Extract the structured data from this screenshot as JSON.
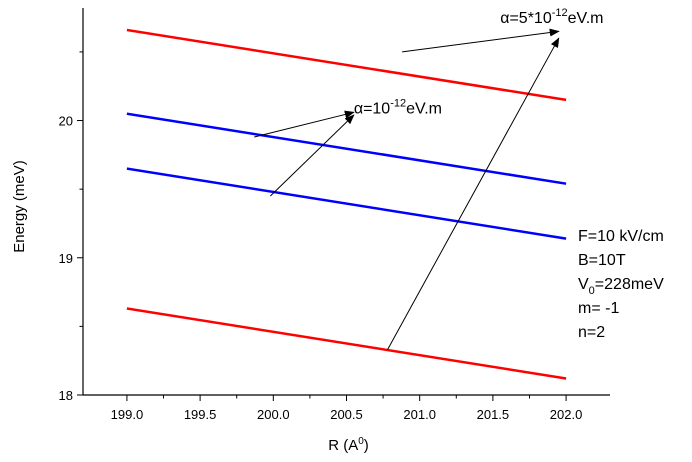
{
  "chart_data": {
    "type": "line",
    "title": "",
    "xlabel": "R (A",
    "xlabel_sup": "0",
    "xlabel_end": ")",
    "ylabel": "Energy (meV)",
    "xlim": [
      198.7,
      202.3
    ],
    "ylim": [
      18.0,
      20.82
    ],
    "x_ticks": [
      199.0,
      199.5,
      200.0,
      200.5,
      201.0,
      201.5,
      202.0
    ],
    "x_tick_labels": [
      "199.0",
      "199.5",
      "200.0",
      "200.5",
      "201.0",
      "201.5",
      "202.0"
    ],
    "y_ticks": [
      18,
      19,
      20
    ],
    "y_tick_labels": [
      "18",
      "19",
      "20"
    ],
    "grid": false,
    "series": [
      {
        "color": "#ff0000",
        "x": [
          199.0,
          202.0
        ],
        "y": [
          20.66,
          20.15
        ]
      },
      {
        "color": "#0000ff",
        "x": [
          199.0,
          202.0
        ],
        "y": [
          20.05,
          19.54
        ]
      },
      {
        "color": "#0000ff",
        "x": [
          199.0,
          202.0
        ],
        "y": [
          19.65,
          19.14
        ]
      },
      {
        "color": "#ff0000",
        "x": [
          199.0,
          202.0
        ],
        "y": [
          18.63,
          18.12
        ]
      }
    ],
    "annotations": [
      {
        "text_pre": "α=10",
        "text_sup": "-12",
        "text_post": "eV.m",
        "text_at": [
          200.55,
          20.05
        ],
        "arrows": [
          {
            "from": [
              199.87,
              19.88
            ],
            "to": [
              200.55,
              20.06
            ]
          },
          {
            "from": [
              199.98,
              19.45
            ],
            "to": [
              200.55,
              20.04
            ]
          }
        ]
      },
      {
        "text_pre": "α=5*10",
        "text_sup": "-12",
        "text_post": "eV.m",
        "text_at": [
          201.55,
          20.71
        ],
        "arrows": [
          {
            "from": [
              200.88,
              20.5
            ],
            "to": [
              201.95,
              20.65
            ]
          },
          {
            "from": [
              200.78,
              18.33
            ],
            "to": [
              201.95,
              20.6
            ]
          }
        ]
      }
    ],
    "parameters": [
      {
        "pre": "F=10 kV/cm",
        "sub": "",
        "post": ""
      },
      {
        "pre": "B=10T",
        "sub": "",
        "post": ""
      },
      {
        "pre": "V",
        "sub": "0",
        "post": "=228meV"
      },
      {
        "pre": "m= -1",
        "sub": "",
        "post": ""
      },
      {
        "pre": "n=2",
        "sub": "",
        "post": ""
      }
    ]
  }
}
